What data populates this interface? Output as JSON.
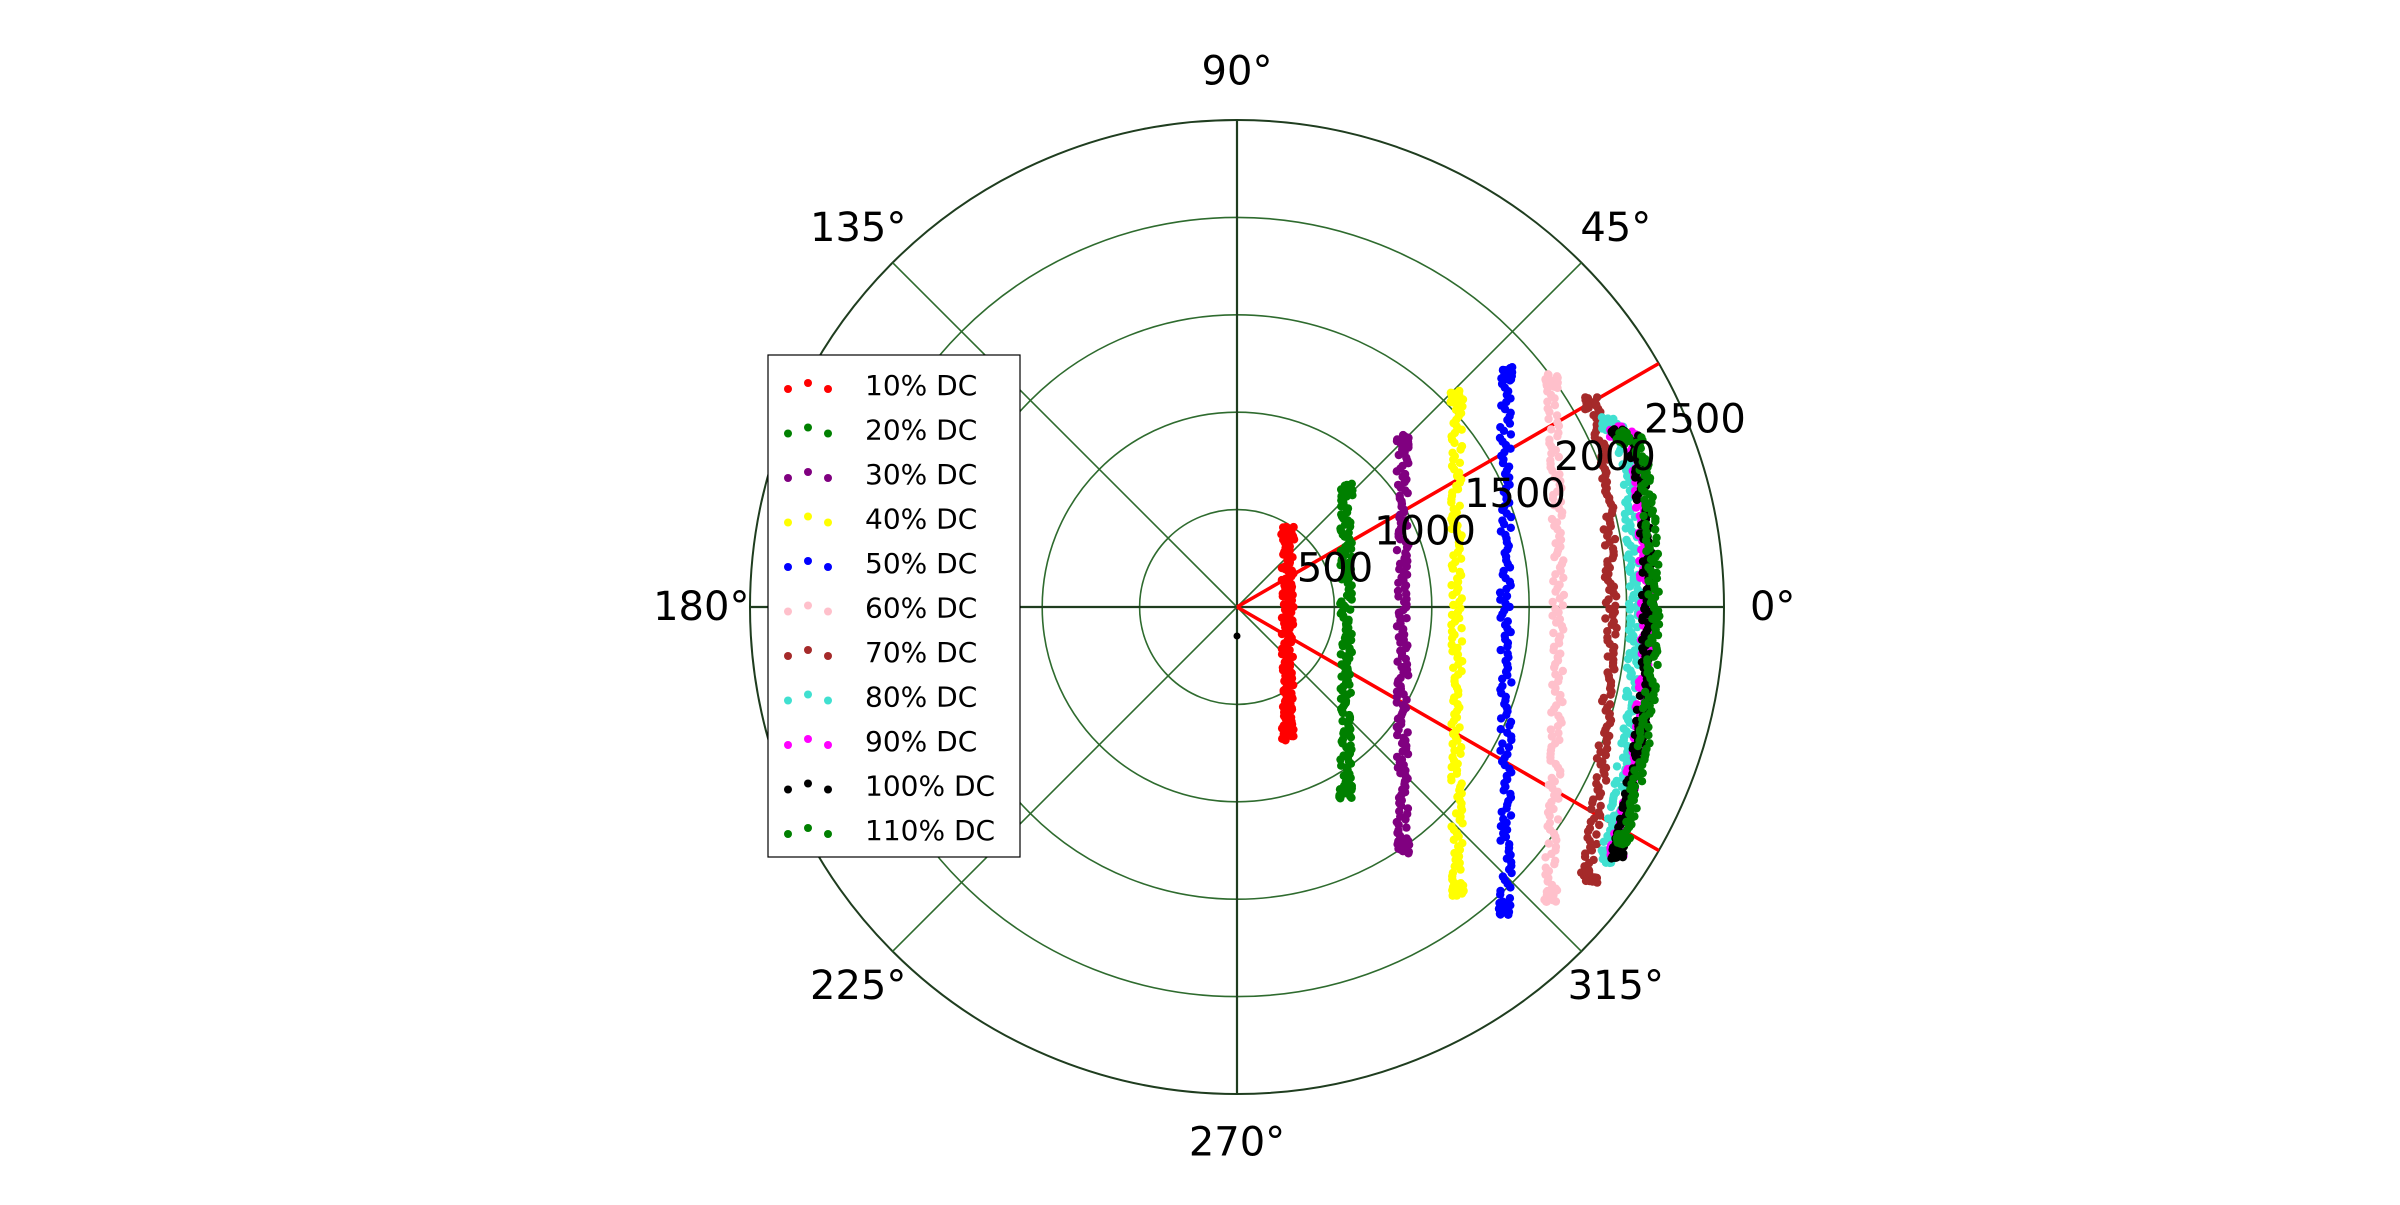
{
  "chart_data": {
    "type": "scatter",
    "projection": "polar",
    "theta_unit": "degrees",
    "r_max": 2500,
    "r_ticks": [
      500,
      1000,
      1500,
      2000,
      2500
    ],
    "r_tick_labels": [
      "500",
      "1000",
      "1500",
      "2000",
      "2500"
    ],
    "theta_ticks": [
      0,
      45,
      90,
      135,
      180,
      225,
      270,
      315
    ],
    "theta_tick_labels": [
      "0°",
      "45°",
      "90°",
      "135°",
      "180°",
      "225°",
      "270°",
      "315°"
    ],
    "grid": true,
    "grid_color": "#2e6b2e",
    "legend_position": "center-left",
    "reference_lines": [
      {
        "theta": 30,
        "r": 2500,
        "color": "#ff0000"
      },
      {
        "theta": -30,
        "r": 2500,
        "color": "#ff0000"
      }
    ],
    "series": [
      {
        "name": "10% DC",
        "color": "#ff0000",
        "x_const": 260,
        "y_range": [
          -650,
          380
        ]
      },
      {
        "name": "20% DC",
        "color": "#008000",
        "x_const": 560,
        "y_range": [
          -950,
          600
        ]
      },
      {
        "name": "30% DC",
        "color": "#800080",
        "x_const": 850,
        "y_range": [
          -1230,
          850
        ]
      },
      {
        "name": "40% DC",
        "color": "#ffff00",
        "x_const": 1130,
        "y_range": [
          -1450,
          1080
        ]
      },
      {
        "name": "50% DC",
        "color": "#0000ff",
        "x_const": 1380,
        "y_range": [
          -1550,
          1200
        ]
      },
      {
        "name": "60% DC",
        "color": "#ffc0cb",
        "x_const": 1650,
        "y_range": [
          -1480,
          1160
        ]
      },
      {
        "name": "70% DC",
        "color": "#a52a2a",
        "x_const": 1920,
        "y_range": [
          -1380,
          1050
        ]
      },
      {
        "name": "80% DC",
        "color": "#40e0d0",
        "x_const": 2040,
        "y_range": [
          -1280,
          940
        ]
      },
      {
        "name": "90% DC",
        "color": "#ff00ff",
        "x_const": 2100,
        "y_range": [
          -1250,
          900
        ]
      },
      {
        "name": "100% DC",
        "color": "#000000",
        "x_const": 2110,
        "y_range": [
          -1260,
          880
        ]
      },
      {
        "name": "110% DC",
        "color": "#008000",
        "x_const": 2140,
        "y_range": [
          -1200,
          870
        ]
      }
    ]
  }
}
